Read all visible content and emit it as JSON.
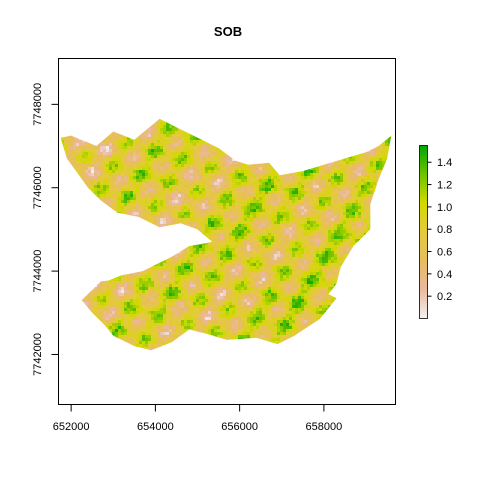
{
  "chart_data": {
    "type": "heatmap",
    "title": "SOB",
    "xlabel": "",
    "ylabel": "",
    "x_ticks": [
      652000,
      654000,
      656000,
      658000
    ],
    "x_tick_labels": [
      "652000",
      "654000",
      "656000",
      "658000"
    ],
    "y_ticks": [
      7742000,
      7744000,
      7746000,
      7748000
    ],
    "y_tick_labels": [
      "7742000",
      "7744000",
      "7746000",
      "7748000"
    ],
    "xlim": [
      651700,
      659700
    ],
    "ylim": [
      7740800,
      7749100
    ],
    "legend": {
      "position": "right",
      "range": [
        0.0,
        1.55
      ],
      "ticks": [
        0.2,
        0.4,
        0.6,
        0.8,
        1.0,
        1.2,
        1.4
      ],
      "tick_labels": [
        "0.2",
        "0.4",
        "0.6",
        "0.8",
        "1.0",
        "1.2",
        "1.4"
      ],
      "colors": [
        "#F2F2F2",
        "#EBB8A0",
        "#E7BD5E",
        "#E5CA3D",
        "#D2D900",
        "#6FC300",
        "#00A600"
      ]
    },
    "value_range": [
      0.0,
      1.55
    ],
    "grid": false,
    "region": {
      "upper_lobe": [
        [
          651750,
          7747200
        ],
        [
          652000,
          7747250
        ],
        [
          652600,
          7747000
        ],
        [
          653000,
          7747350
        ],
        [
          653500,
          7747150
        ],
        [
          654100,
          7747650
        ],
        [
          654600,
          7747400
        ],
        [
          655100,
          7747150
        ],
        [
          655500,
          7746950
        ],
        [
          655900,
          7746650
        ],
        [
          656200,
          7746550
        ],
        [
          656700,
          7746600
        ],
        [
          656950,
          7746300
        ],
        [
          657500,
          7746400
        ],
        [
          658000,
          7746550
        ],
        [
          658500,
          7746700
        ],
        [
          659000,
          7746850
        ],
        [
          659300,
          7747000
        ],
        [
          659600,
          7747250
        ],
        [
          659500,
          7746700
        ],
        [
          659300,
          7746200
        ],
        [
          659100,
          7745600
        ],
        [
          659100,
          7745000
        ],
        [
          658700,
          7744600
        ],
        [
          658400,
          7744100
        ],
        [
          658300,
          7743700
        ],
        [
          658000,
          7743300
        ],
        [
          657500,
          7742850
        ],
        [
          657100,
          7742450
        ],
        [
          656900,
          7742300
        ],
        [
          656400,
          7742450
        ],
        [
          655900,
          7742400
        ],
        [
          655500,
          7742600
        ],
        [
          655000,
          7742850
        ],
        [
          654500,
          7743050
        ],
        [
          654000,
          7743250
        ],
        [
          653500,
          7743200
        ],
        [
          652900,
          7743250
        ],
        [
          652350,
          7743250
        ],
        [
          652700,
          7743700
        ],
        [
          653200,
          7743900
        ],
        [
          653700,
          7744000
        ],
        [
          654400,
          7744350
        ],
        [
          654800,
          7744600
        ],
        [
          655350,
          7744700
        ],
        [
          655000,
          7745000
        ],
        [
          654600,
          7745150
        ],
        [
          654100,
          7745050
        ],
        [
          653600,
          7745300
        ],
        [
          653100,
          7745400
        ],
        [
          652700,
          7745700
        ],
        [
          652400,
          7746000
        ],
        [
          652150,
          7746350
        ],
        [
          651900,
          7746700
        ],
        [
          651750,
          7747200
        ]
      ],
      "lower_lobe": [
        [
          652250,
          7743300
        ],
        [
          652700,
          7743750
        ],
        [
          653100,
          7743800
        ],
        [
          653400,
          7743650
        ],
        [
          653900,
          7743450
        ],
        [
          654600,
          7744000
        ],
        [
          655300,
          7744450
        ],
        [
          655900,
          7744650
        ],
        [
          656500,
          7744300
        ],
        [
          657300,
          7743900
        ],
        [
          657800,
          7743600
        ],
        [
          658300,
          7743350
        ],
        [
          657900,
          7742850
        ],
        [
          657300,
          7742450
        ],
        [
          656900,
          7742250
        ],
        [
          656400,
          7742400
        ],
        [
          655700,
          7742350
        ],
        [
          655200,
          7742500
        ],
        [
          654800,
          7742600
        ],
        [
          654400,
          7742300
        ],
        [
          653900,
          7742100
        ],
        [
          653500,
          7742200
        ],
        [
          653000,
          7742450
        ],
        [
          652800,
          7742700
        ],
        [
          652500,
          7743000
        ],
        [
          652250,
          7743300
        ]
      ]
    }
  }
}
